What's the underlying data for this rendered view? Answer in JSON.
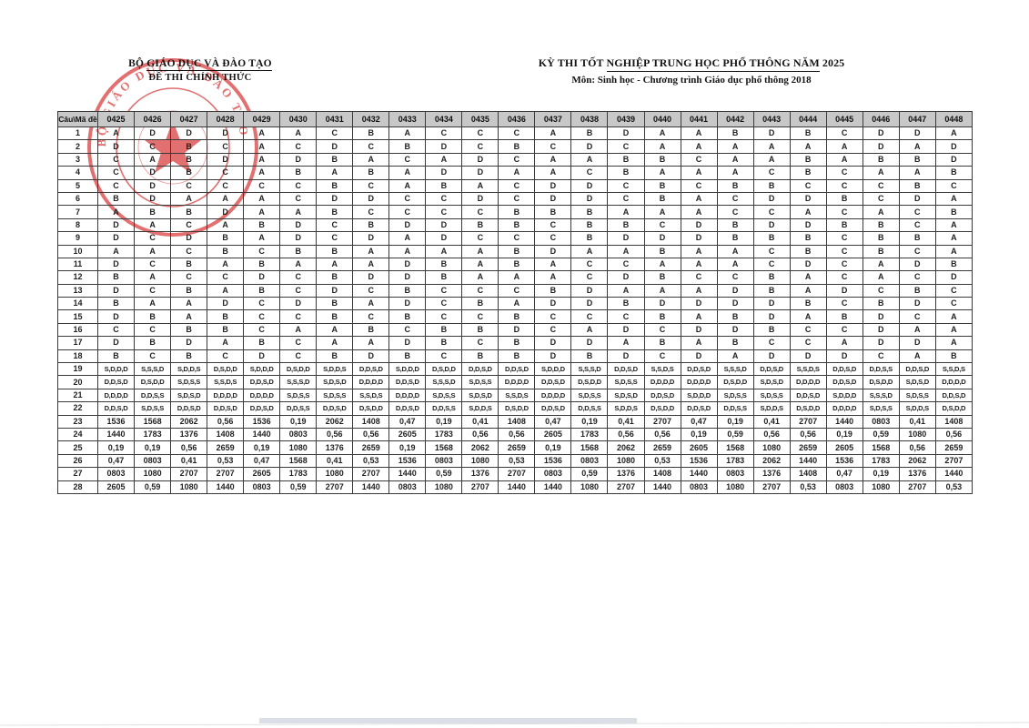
{
  "header": {
    "left": {
      "line1_prefix": "BỘ ",
      "line1_underlined": "GIÁO DỤC VÀ ĐÀO TẠO",
      "line2": "ĐỀ THI CHÍNH THỨC"
    },
    "right": {
      "line1_prefix": "KỲ THI TỐT ",
      "line1_underlined": "NGHIỆP TRUNG HỌC PHỔ THÔNG NĂM",
      "line1_suffix": " 2025",
      "line2": "Môn: Sinh học - Chương trình Giáo dục phổ thông 2018"
    }
  },
  "stamp": {
    "icon": "official-red-seal",
    "arc_text": "BỘ GIÁO DỤC VÀ ĐÀO TẠO",
    "color": "#d42b2b"
  },
  "colors": {
    "table_header_bg": "#c8c8c8",
    "table_border": "#3a3a3a",
    "stamp_red": "#d42b2b"
  },
  "table": {
    "corner_label": "Câu\\Mã đề",
    "codes": [
      "0425",
      "0426",
      "0427",
      "0428",
      "0429",
      "0430",
      "0431",
      "0432",
      "0433",
      "0434",
      "0435",
      "0436",
      "0437",
      "0438",
      "0439",
      "0440",
      "0441",
      "0442",
      "0443",
      "0444",
      "0445",
      "0446",
      "0447",
      "0448"
    ],
    "rows": [
      {
        "q": "1",
        "a": [
          "A",
          "D",
          "D",
          "D",
          "A",
          "A",
          "C",
          "B",
          "A",
          "C",
          "C",
          "C",
          "A",
          "B",
          "D",
          "A",
          "A",
          "B",
          "D",
          "B",
          "C",
          "D",
          "D",
          "A"
        ]
      },
      {
        "q": "2",
        "a": [
          "D",
          "C",
          "B",
          "C",
          "A",
          "C",
          "D",
          "C",
          "B",
          "D",
          "C",
          "B",
          "C",
          "D",
          "C",
          "A",
          "A",
          "A",
          "A",
          "A",
          "A",
          "D",
          "A",
          "D"
        ]
      },
      {
        "q": "3",
        "a": [
          "C",
          "A",
          "B",
          "D",
          "A",
          "D",
          "B",
          "A",
          "C",
          "A",
          "D",
          "C",
          "A",
          "A",
          "B",
          "B",
          "C",
          "A",
          "A",
          "B",
          "A",
          "B",
          "B",
          "D"
        ]
      },
      {
        "q": "4",
        "a": [
          "C",
          "D",
          "B",
          "C",
          "A",
          "B",
          "A",
          "B",
          "A",
          "D",
          "D",
          "A",
          "A",
          "C",
          "B",
          "A",
          "A",
          "A",
          "C",
          "B",
          "C",
          "A",
          "A",
          "B"
        ]
      },
      {
        "q": "5",
        "a": [
          "C",
          "D",
          "C",
          "C",
          "C",
          "C",
          "B",
          "C",
          "A",
          "B",
          "A",
          "C",
          "D",
          "D",
          "C",
          "B",
          "C",
          "B",
          "B",
          "C",
          "C",
          "C",
          "B",
          "C"
        ]
      },
      {
        "q": "6",
        "a": [
          "B",
          "D",
          "A",
          "A",
          "A",
          "C",
          "D",
          "D",
          "C",
          "C",
          "D",
          "C",
          "D",
          "D",
          "C",
          "B",
          "A",
          "C",
          "D",
          "D",
          "B",
          "C",
          "D",
          "A"
        ]
      },
      {
        "q": "7",
        "a": [
          "A",
          "B",
          "B",
          "D",
          "A",
          "A",
          "B",
          "C",
          "C",
          "C",
          "C",
          "B",
          "B",
          "B",
          "A",
          "A",
          "A",
          "C",
          "C",
          "A",
          "C",
          "A",
          "C",
          "B"
        ]
      },
      {
        "q": "8",
        "a": [
          "D",
          "A",
          "C",
          "A",
          "B",
          "D",
          "C",
          "B",
          "D",
          "D",
          "B",
          "B",
          "C",
          "B",
          "B",
          "C",
          "D",
          "B",
          "D",
          "D",
          "B",
          "B",
          "C",
          "A"
        ]
      },
      {
        "q": "9",
        "a": [
          "D",
          "C",
          "D",
          "B",
          "A",
          "D",
          "C",
          "D",
          "A",
          "D",
          "C",
          "C",
          "C",
          "B",
          "D",
          "D",
          "D",
          "B",
          "B",
          "B",
          "C",
          "B",
          "B",
          "A"
        ]
      },
      {
        "q": "10",
        "a": [
          "A",
          "A",
          "C",
          "B",
          "C",
          "B",
          "B",
          "A",
          "A",
          "A",
          "A",
          "B",
          "D",
          "A",
          "A",
          "B",
          "A",
          "A",
          "C",
          "B",
          "C",
          "B",
          "C",
          "A"
        ]
      },
      {
        "q": "11",
        "a": [
          "D",
          "C",
          "B",
          "A",
          "B",
          "A",
          "A",
          "A",
          "D",
          "B",
          "A",
          "B",
          "A",
          "C",
          "C",
          "A",
          "A",
          "A",
          "C",
          "D",
          "C",
          "A",
          "D",
          "B"
        ]
      },
      {
        "q": "12",
        "a": [
          "B",
          "A",
          "C",
          "C",
          "D",
          "C",
          "B",
          "D",
          "D",
          "B",
          "A",
          "A",
          "A",
          "C",
          "D",
          "B",
          "C",
          "C",
          "B",
          "A",
          "C",
          "A",
          "C",
          "D"
        ]
      },
      {
        "q": "13",
        "a": [
          "D",
          "C",
          "B",
          "A",
          "B",
          "C",
          "D",
          "C",
          "B",
          "C",
          "C",
          "C",
          "B",
          "D",
          "A",
          "A",
          "A",
          "D",
          "B",
          "A",
          "D",
          "C",
          "B",
          "C"
        ]
      },
      {
        "q": "14",
        "a": [
          "B",
          "A",
          "A",
          "D",
          "C",
          "D",
          "B",
          "A",
          "D",
          "C",
          "B",
          "A",
          "D",
          "D",
          "B",
          "D",
          "D",
          "D",
          "D",
          "B",
          "C",
          "B",
          "D",
          "C"
        ]
      },
      {
        "q": "15",
        "a": [
          "D",
          "B",
          "A",
          "B",
          "C",
          "C",
          "B",
          "C",
          "B",
          "C",
          "C",
          "B",
          "C",
          "C",
          "C",
          "B",
          "A",
          "B",
          "D",
          "A",
          "B",
          "D",
          "C",
          "A"
        ]
      },
      {
        "q": "16",
        "a": [
          "C",
          "C",
          "B",
          "B",
          "C",
          "A",
          "A",
          "B",
          "C",
          "B",
          "B",
          "D",
          "C",
          "A",
          "D",
          "C",
          "D",
          "D",
          "B",
          "C",
          "C",
          "D",
          "A",
          "A"
        ]
      },
      {
        "q": "17",
        "a": [
          "D",
          "B",
          "D",
          "A",
          "B",
          "C",
          "A",
          "A",
          "D",
          "B",
          "C",
          "B",
          "D",
          "D",
          "A",
          "B",
          "A",
          "B",
          "C",
          "C",
          "A",
          "D",
          "D",
          "A"
        ]
      },
      {
        "q": "18",
        "a": [
          "B",
          "C",
          "B",
          "C",
          "D",
          "C",
          "B",
          "D",
          "B",
          "C",
          "B",
          "B",
          "D",
          "B",
          "D",
          "C",
          "D",
          "A",
          "D",
          "D",
          "D",
          "C",
          "A",
          "B"
        ]
      },
      {
        "q": "19",
        "a": [
          "S,D,D,D",
          "S,S,S,D",
          "S,D,D,S",
          "D,S,D,D",
          "S,D,D,D",
          "D,S,D,D",
          "S,D,D,S",
          "D,D,S,D",
          "S,D,D,D",
          "D,S,D,D",
          "D,D,S,D",
          "D,D,S,D",
          "S,D,D,D",
          "S,S,S,D",
          "D,D,S,D",
          "S,S,D,S",
          "D,D,S,D",
          "S,S,S,D",
          "D,D,S,D",
          "S,S,D,S",
          "D,D,S,D",
          "D,D,S,S",
          "D,D,S,D",
          "S,S,D,S"
        ]
      },
      {
        "q": "20",
        "a": [
          "D,D,S,D",
          "D,S,D,D",
          "S,D,S,S",
          "S,S,D,S",
          "D,D,S,D",
          "S,S,S,D",
          "S,D,S,D",
          "D,D,D,D",
          "D,D,S,D",
          "S,S,S,D",
          "S,D,S,S",
          "D,D,D,D",
          "D,D,S,D",
          "D,S,D,D",
          "S,D,S,S",
          "D,D,D,D",
          "D,D,D,D",
          "D,S,D,D",
          "S,D,S,D",
          "D,D,D,D",
          "D,D,S,D",
          "D,S,D,D",
          "S,D,S,D",
          "D,D,D,D"
        ]
      },
      {
        "q": "21",
        "a": [
          "D,D,D,D",
          "D,D,S,S",
          "S,D,S,D",
          "D,D,D,D",
          "D,D,D,D",
          "S,D,S,S",
          "S,D,S,S",
          "S,S,D,S",
          "D,D,D,D",
          "S,D,S,S",
          "S,D,S,D",
          "S,S,D,S",
          "D,D,D,D",
          "S,D,S,S",
          "S,D,S,D",
          "D,D,S,D",
          "S,D,D,D",
          "S,D,S,S",
          "S,D,S,S",
          "D,D,S,D",
          "S,D,D,D",
          "S,S,S,D",
          "S,D,S,S",
          "D,D,S,D"
        ]
      },
      {
        "q": "22",
        "a": [
          "D,D,S,D",
          "S,D,S,S",
          "D,D,S,D",
          "D,D,S,D",
          "D,D,S,D",
          "D,D,S,S",
          "D,D,S,D",
          "D,S,D,D",
          "D,D,S,D",
          "D,D,S,S",
          "S,D,D,S",
          "D,S,D,D",
          "D,D,S,D",
          "D,D,S,S",
          "S,D,D,S",
          "D,S,D,D",
          "D,D,S,D",
          "D,D,S,S",
          "S,D,D,S",
          "D,S,D,D",
          "D,D,D,D",
          "S,D,S,S",
          "S,D,D,S",
          "D,S,D,D"
        ]
      },
      {
        "q": "23",
        "a": [
          "1536",
          "1568",
          "2062",
          "0,56",
          "1536",
          "0,19",
          "2062",
          "1408",
          "0,47",
          "0,19",
          "0,41",
          "1408",
          "0,47",
          "0,19",
          "0,41",
          "2707",
          "0,47",
          "0,19",
          "0,41",
          "2707",
          "1440",
          "0803",
          "0,41",
          "1408"
        ]
      },
      {
        "q": "24",
        "a": [
          "1440",
          "1783",
          "1376",
          "1408",
          "1440",
          "0803",
          "0,56",
          "0,56",
          "2605",
          "1783",
          "0,56",
          "0,56",
          "2605",
          "1783",
          "0,56",
          "0,56",
          "0,19",
          "0,59",
          "0,56",
          "0,56",
          "0,19",
          "0,59",
          "1080",
          "0,56"
        ]
      },
      {
        "q": "25",
        "a": [
          "0,19",
          "0,19",
          "0,56",
          "2659",
          "0,19",
          "1080",
          "1376",
          "2659",
          "0,19",
          "1568",
          "2062",
          "2659",
          "0,19",
          "1568",
          "2062",
          "2659",
          "2605",
          "1568",
          "1080",
          "2659",
          "2605",
          "1568",
          "0,56",
          "2659"
        ]
      },
      {
        "q": "26",
        "a": [
          "0,47",
          "0803",
          "0,41",
          "0,53",
          "0,47",
          "1568",
          "0,41",
          "0,53",
          "1536",
          "0803",
          "1080",
          "0,53",
          "1536",
          "0803",
          "1080",
          "0,53",
          "1536",
          "1783",
          "2062",
          "1440",
          "1536",
          "1783",
          "2062",
          "2707"
        ]
      },
      {
        "q": "27",
        "a": [
          "0803",
          "1080",
          "2707",
          "2707",
          "2605",
          "1783",
          "1080",
          "2707",
          "1440",
          "0,59",
          "1376",
          "2707",
          "0803",
          "0,59",
          "1376",
          "1408",
          "1440",
          "0803",
          "1376",
          "1408",
          "0,47",
          "0,19",
          "1376",
          "1440"
        ]
      },
      {
        "q": "28",
        "a": [
          "2605",
          "0,59",
          "1080",
          "1440",
          "0803",
          "0,59",
          "2707",
          "1440",
          "0803",
          "1080",
          "2707",
          "1440",
          "1440",
          "1080",
          "2707",
          "1440",
          "0803",
          "1080",
          "2707",
          "0,53",
          "0803",
          "1080",
          "2707",
          "0,53"
        ]
      }
    ]
  }
}
